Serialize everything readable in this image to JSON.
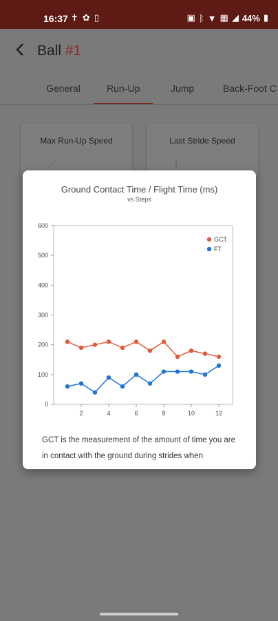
{
  "status": {
    "time": "16:37",
    "left_icons": [
      "accessibility-icon",
      "settings-icon",
      "sim-icon"
    ],
    "right_icons": [
      "nfc-icon",
      "bluetooth-icon",
      "wifi-icon",
      "data-icon",
      "signal-icon",
      "battery-icon"
    ],
    "battery_text": "44%"
  },
  "app_bar": {
    "title": "Ball",
    "title_number": "#1"
  },
  "tabs": [
    {
      "label": "General"
    },
    {
      "label": "Run-Up"
    },
    {
      "label": "Jump"
    },
    {
      "label": "Back-Foot C"
    }
  ],
  "active_tab": "Run-Up",
  "cards": [
    {
      "label": "Max Run-Up Speed"
    },
    {
      "label": "Last Stride Speed"
    }
  ],
  "dialog": {
    "description": "GCT is the measurement of the amount of time you are in contact with the ground during strides when"
  },
  "chart_data": {
    "type": "line",
    "title": "Ground Contact Time / Flight Time (ms)",
    "subtitle": "vs Steps",
    "x": [
      1,
      2,
      3,
      4,
      5,
      6,
      7,
      8,
      9,
      10,
      11,
      12
    ],
    "xlim": [
      0,
      13
    ],
    "ylim": [
      0,
      600
    ],
    "x_ticks": [
      2,
      4,
      6,
      8,
      10,
      12
    ],
    "y_ticks": [
      0,
      100,
      200,
      300,
      400,
      500,
      600
    ],
    "grid": false,
    "legend_position": "top-right",
    "series": [
      {
        "name": "GCT",
        "color": "#e25b3a",
        "values": [
          210,
          190,
          200,
          210,
          190,
          210,
          180,
          210,
          160,
          180,
          170,
          160
        ]
      },
      {
        "name": "FT",
        "color": "#1f74db",
        "values": [
          60,
          70,
          40,
          90,
          60,
          100,
          70,
          110,
          110,
          110,
          100,
          130
        ]
      }
    ]
  }
}
